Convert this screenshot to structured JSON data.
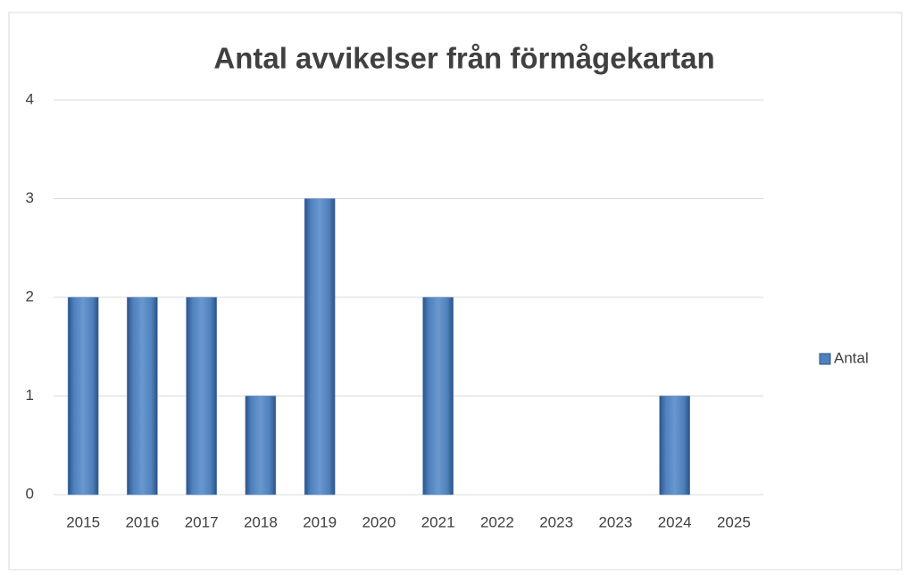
{
  "chart_data": {
    "type": "bar",
    "title": "Antal avvikelser från förmågekartan",
    "categories": [
      "2015",
      "2016",
      "2017",
      "2018",
      "2019",
      "2020",
      "2021",
      "2022",
      "2023",
      "2023",
      "2024",
      "2025"
    ],
    "series": [
      {
        "name": "Antal",
        "color": "#4f81bd",
        "values": [
          2,
          2,
          2,
          1,
          3,
          0,
          2,
          0,
          0,
          0,
          1,
          0
        ]
      }
    ],
    "ylim": [
      0,
      4
    ],
    "yticks": [
      0,
      1,
      2,
      3,
      4
    ],
    "grid": true,
    "legend": "right"
  }
}
